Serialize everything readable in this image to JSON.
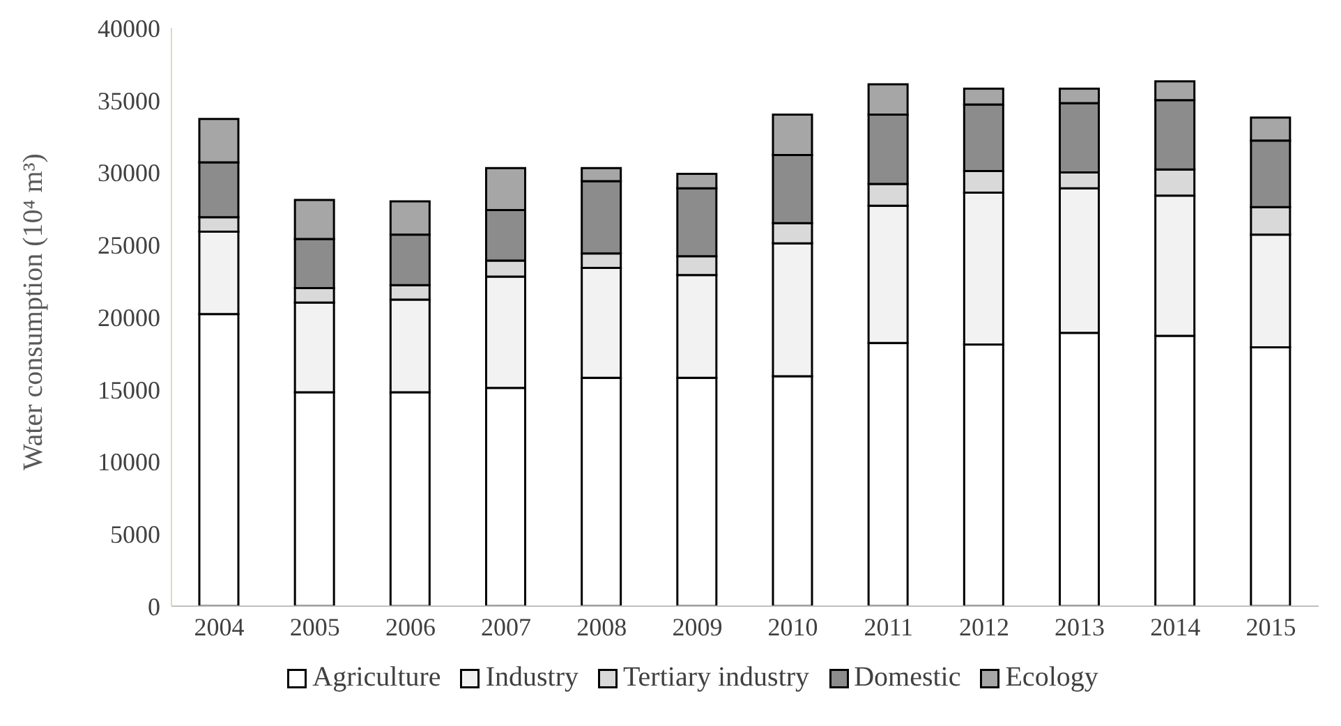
{
  "chart_data": {
    "type": "bar",
    "stacked": true,
    "ylabel": "Water consumption (10⁴ m³)",
    "categories": [
      "2004",
      "2005",
      "2006",
      "2007",
      "2008",
      "2009",
      "2010",
      "2011",
      "2012",
      "2013",
      "2014",
      "2015"
    ],
    "series": [
      {
        "name": "Agriculture",
        "color": "#ffffff",
        "values": [
          20200,
          14800,
          14800,
          15100,
          15800,
          15800,
          15900,
          18200,
          18100,
          18900,
          18700,
          17900
        ]
      },
      {
        "name": "Industry",
        "color": "#f2f2f2",
        "values": [
          5700,
          6200,
          6400,
          7700,
          7600,
          7100,
          9200,
          9500,
          10500,
          10000,
          9700,
          7800
        ]
      },
      {
        "name": "Tertiary industry",
        "color": "#d9d9d9",
        "values": [
          1000,
          1000,
          1000,
          1100,
          1000,
          1300,
          1400,
          1500,
          1500,
          1100,
          1800,
          1900
        ]
      },
      {
        "name": "Domestic",
        "color": "#8c8c8c",
        "values": [
          3800,
          3400,
          3500,
          3500,
          5000,
          4700,
          4700,
          4800,
          4600,
          4800,
          4800,
          4600
        ]
      },
      {
        "name": "Ecology",
        "color": "#a6a6a6",
        "values": [
          3000,
          2700,
          2300,
          2900,
          900,
          1000,
          2800,
          2100,
          1100,
          1000,
          1300,
          1600
        ]
      }
    ],
    "ylim": [
      0,
      40000
    ],
    "yticks": [
      0,
      5000,
      10000,
      15000,
      20000,
      25000,
      30000,
      35000,
      40000
    ],
    "grid": false,
    "legend": "bottom"
  }
}
